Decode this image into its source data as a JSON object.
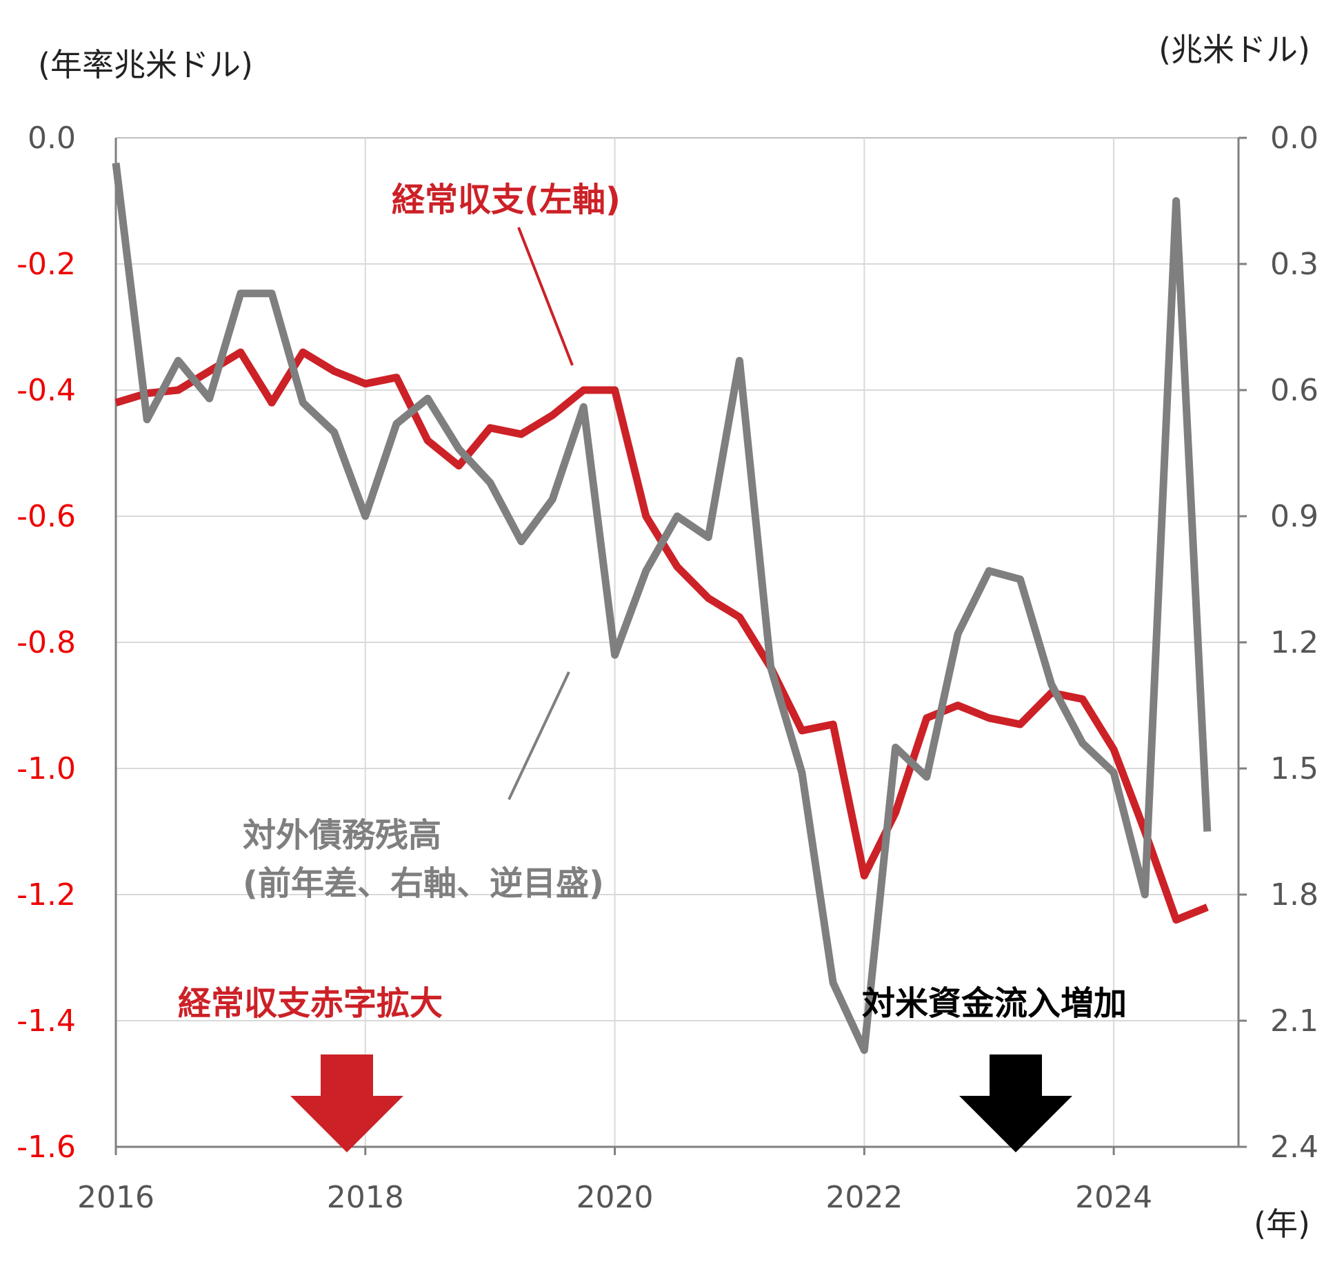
{
  "colors": {
    "current_account": "#cc2127",
    "external_debt": "#7f7f7f",
    "left_axis_text": "#ee0000",
    "right_axis_text": "#555555",
    "x_axis_text": "#555555",
    "inflow_arrow": "#000000",
    "deficit_arrow": "#cc2127"
  },
  "units": {
    "left": "(年率兆米ドル)",
    "right": "(兆米ドル)",
    "x": "(年)"
  },
  "labels": {
    "current_account": "経常収支(左軸)",
    "external_debt_line1": "対外債務残高",
    "external_debt_line2": "(前年差、右軸、逆目盛)",
    "deficit_widening": "経常収支赤字拡大",
    "inflow_increase": "対米資金流入増加"
  },
  "chart_data": {
    "type": "line",
    "x_ticks": [
      2016,
      2018,
      2020,
      2022,
      2024
    ],
    "x_tick_labels": [
      "2016",
      "2018",
      "2020",
      "2022",
      "2024"
    ],
    "xlim": [
      2016.0,
      2025.0
    ],
    "left_axis": {
      "ylim": [
        -1.6,
        0.0
      ],
      "ticks": [
        0.0,
        -0.2,
        -0.4,
        -0.6,
        -0.8,
        -1.0,
        -1.2,
        -1.4,
        -1.6
      ],
      "tick_labels": [
        "0.0",
        "-0.2",
        "-0.4",
        "-0.6",
        "-0.8",
        "-1.0",
        "-1.2",
        "-1.4",
        "-1.6"
      ]
    },
    "right_axis": {
      "inverted": true,
      "ylim": [
        0.0,
        2.4
      ],
      "ticks": [
        0.0,
        0.3,
        0.6,
        0.9,
        1.2,
        1.5,
        1.8,
        2.1,
        2.4
      ],
      "tick_labels": [
        "0.0",
        "0.3",
        "0.6",
        "0.9",
        "1.2",
        "1.5",
        "1.8",
        "2.1",
        "2.4"
      ]
    },
    "grid": true,
    "series": [
      {
        "name": "経常収支(左軸)",
        "axis": "left",
        "x": [
          2016.0,
          2016.25,
          2016.5,
          2016.75,
          2017.0,
          2017.25,
          2017.5,
          2017.75,
          2018.0,
          2018.25,
          2018.5,
          2018.75,
          2019.0,
          2019.25,
          2019.5,
          2019.75,
          2020.0,
          2020.25,
          2020.5,
          2020.75,
          2021.0,
          2021.25,
          2021.5,
          2021.75,
          2022.0,
          2022.25,
          2022.5,
          2022.75,
          2023.0,
          2023.25,
          2023.5,
          2023.75,
          2024.0,
          2024.25,
          2024.5,
          2024.75
        ],
        "values": [
          -0.42,
          -0.405,
          -0.4,
          -0.37,
          -0.34,
          -0.42,
          -0.34,
          -0.37,
          -0.39,
          -0.38,
          -0.48,
          -0.52,
          -0.46,
          -0.47,
          -0.44,
          -0.4,
          -0.4,
          -0.6,
          -0.68,
          -0.73,
          -0.76,
          -0.84,
          -0.94,
          -0.93,
          -1.17,
          -1.07,
          -0.92,
          -0.9,
          -0.92,
          -0.93,
          -0.88,
          -0.89,
          -0.97,
          -1.1,
          -1.24,
          -1.22
        ]
      },
      {
        "name": "対外債務残高(前年差、右軸、逆目盛)",
        "axis": "right",
        "x": [
          2016.0,
          2016.25,
          2016.5,
          2016.75,
          2017.0,
          2017.25,
          2017.5,
          2017.75,
          2018.0,
          2018.25,
          2018.5,
          2018.75,
          2019.0,
          2019.25,
          2019.5,
          2019.75,
          2020.0,
          2020.25,
          2020.5,
          2020.75,
          2021.0,
          2021.25,
          2021.5,
          2021.75,
          2022.0,
          2022.25,
          2022.5,
          2022.75,
          2023.0,
          2023.25,
          2023.5,
          2023.75,
          2024.0,
          2024.25,
          2024.5,
          2024.75
        ],
        "values": [
          0.06,
          0.67,
          0.53,
          0.62,
          0.37,
          0.37,
          0.63,
          0.7,
          0.9,
          0.68,
          0.62,
          0.74,
          0.82,
          0.96,
          0.86,
          0.64,
          1.23,
          1.03,
          0.9,
          0.95,
          0.53,
          1.26,
          1.51,
          2.01,
          2.17,
          1.45,
          1.52,
          1.18,
          1.03,
          1.05,
          1.3,
          1.44,
          1.51,
          1.8,
          0.15,
          1.65
        ]
      }
    ]
  }
}
